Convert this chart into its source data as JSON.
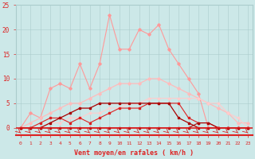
{
  "x": [
    0,
    1,
    2,
    3,
    4,
    5,
    6,
    7,
    8,
    9,
    10,
    11,
    12,
    13,
    14,
    15,
    16,
    17,
    18,
    19,
    20,
    21,
    22,
    23
  ],
  "line_spiky_pink": [
    0,
    3,
    2,
    8,
    9,
    8,
    13,
    8,
    13,
    23,
    16,
    16,
    20,
    19,
    21,
    16,
    13,
    10,
    7,
    0,
    0,
    0,
    0,
    0
  ],
  "line_smooth_pink": [
    0,
    1,
    2,
    3,
    4,
    5,
    5,
    6,
    7,
    8,
    9,
    9,
    9,
    10,
    10,
    9,
    8,
    7,
    6,
    5,
    4,
    3,
    1,
    1
  ],
  "line_pale_arc": [
    0,
    0,
    0,
    1,
    1,
    2,
    2,
    3,
    3,
    4,
    4,
    5,
    5,
    6,
    6,
    6,
    6,
    6,
    6,
    5,
    5,
    3,
    2,
    0
  ],
  "line_red_jagged": [
    0,
    0,
    1,
    2,
    2,
    1,
    2,
    1,
    2,
    3,
    4,
    4,
    4,
    5,
    5,
    5,
    5,
    2,
    1,
    1,
    0,
    0,
    0,
    0
  ],
  "line_dark_red_flat": [
    0,
    0,
    0,
    0,
    0,
    0,
    0,
    0,
    0,
    0,
    0,
    0,
    0,
    0,
    0,
    0,
    0,
    0,
    1,
    1,
    0,
    0,
    0,
    0
  ],
  "line_dark_triangle": [
    0,
    0,
    0,
    1,
    2,
    3,
    4,
    4,
    5,
    5,
    5,
    5,
    5,
    5,
    5,
    5,
    2,
    1,
    0,
    0,
    0,
    0,
    0,
    0
  ],
  "background_color": "#cce8e8",
  "grid_color": "#aacccc",
  "color_light_pink": "#ff9999",
  "color_pale_pink": "#ffbbbb",
  "color_red": "#dd2222",
  "color_dark_red": "#aa0000",
  "xlabel": "Vent moyen/en rafales ( km/h )",
  "xlim": [
    -0.5,
    23.5
  ],
  "ylim": [
    0,
    25
  ],
  "yticks": [
    0,
    5,
    10,
    15,
    20,
    25
  ],
  "xticks": [
    0,
    1,
    2,
    3,
    4,
    5,
    6,
    7,
    8,
    9,
    10,
    11,
    12,
    13,
    14,
    15,
    16,
    17,
    18,
    19,
    20,
    21,
    22,
    23
  ]
}
